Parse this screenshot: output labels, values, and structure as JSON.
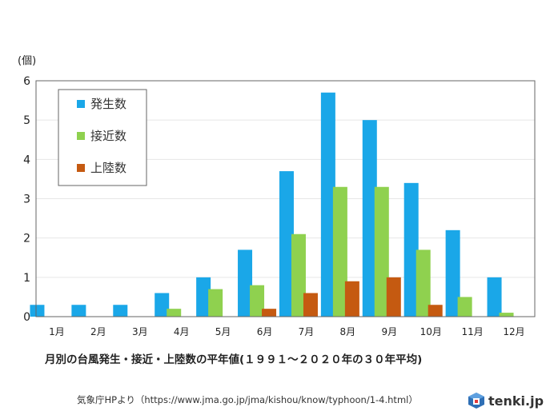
{
  "chart_data": {
    "type": "bar",
    "title": "",
    "unit_label": "(個)",
    "xlabel": "月別の台風発生・接近・上陸数の平年値(１９９１～２０２０年の３０年平均)",
    "ylabel": "",
    "ylim": [
      0,
      6
    ],
    "yticks": [
      "0",
      "1",
      "2",
      "3",
      "4",
      "5",
      "6"
    ],
    "grid": true,
    "legend_position": "top-left",
    "categories": [
      "1月",
      "2月",
      "3月",
      "4月",
      "5月",
      "6月",
      "7月",
      "8月",
      "9月",
      "10月",
      "11月",
      "12月"
    ],
    "series": [
      {
        "name": "発生数",
        "color": "#1aa7e8",
        "values": [
          0.3,
          0.3,
          0.3,
          0.6,
          1.0,
          1.7,
          3.7,
          5.7,
          5.0,
          3.4,
          2.2,
          1.0
        ]
      },
      {
        "name": "接近数",
        "color": "#8fd14f",
        "values": [
          0.0,
          0.0,
          0.0,
          0.2,
          0.7,
          0.8,
          2.1,
          3.3,
          3.3,
          1.7,
          0.5,
          0.1
        ]
      },
      {
        "name": "上陸数",
        "color": "#c55a11",
        "values": [
          0.0,
          0.0,
          0.0,
          0.0,
          0.0,
          0.2,
          0.6,
          0.9,
          1.0,
          0.3,
          0.0,
          0.0
        ]
      }
    ]
  },
  "footer": {
    "source": "気象庁HPより（https://www.jma.go.jp/jma/kishou/know/typhoon/1-4.html）",
    "brand": "tenki.jp"
  }
}
